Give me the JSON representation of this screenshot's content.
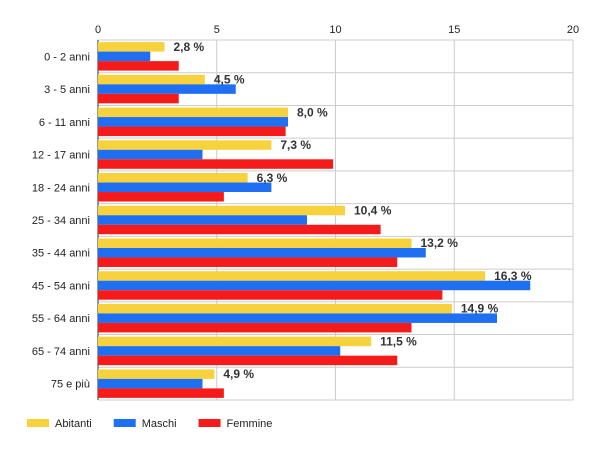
{
  "chart_data": {
    "type": "bar",
    "orientation": "horizontal",
    "categories": [
      "0 - 2 anni",
      "3 - 5 anni",
      "6 - 11 anni",
      "12 - 17 anni",
      "18 - 24 anni",
      "25 - 34 anni",
      "35 - 44 anni",
      "45 - 54 anni",
      "55 - 64 anni",
      "65 - 74 anni",
      "75 e più"
    ],
    "series": [
      {
        "name": "Abitanti",
        "color": "#f7d23c",
        "values": [
          2.8,
          4.5,
          8.0,
          7.3,
          6.3,
          10.4,
          13.2,
          16.3,
          14.9,
          11.5,
          4.9
        ],
        "labels": [
          "2,8 %",
          "4,5 %",
          "8,0 %",
          "7,3 %",
          "6,3 %",
          "10,4 %",
          "13,2 %",
          "16,3 %",
          "14,9 %",
          "11,5 %",
          "4,9 %"
        ]
      },
      {
        "name": "Maschi",
        "color": "#1f6ff2",
        "values": [
          2.2,
          5.8,
          8.0,
          4.4,
          7.3,
          8.8,
          13.8,
          18.2,
          16.8,
          10.2,
          4.4
        ]
      },
      {
        "name": "Femmine",
        "color": "#f51b1b",
        "values": [
          3.4,
          3.4,
          7.9,
          9.9,
          5.3,
          11.9,
          12.6,
          14.5,
          13.2,
          12.6,
          5.3
        ]
      }
    ],
    "xlim": [
      0,
      20
    ],
    "xticks": [
      "0",
      "5",
      "10",
      "15",
      "20"
    ],
    "xtick_values": [
      0,
      5,
      10,
      15,
      20
    ],
    "grid": true,
    "legend_position": "bottom-left"
  }
}
